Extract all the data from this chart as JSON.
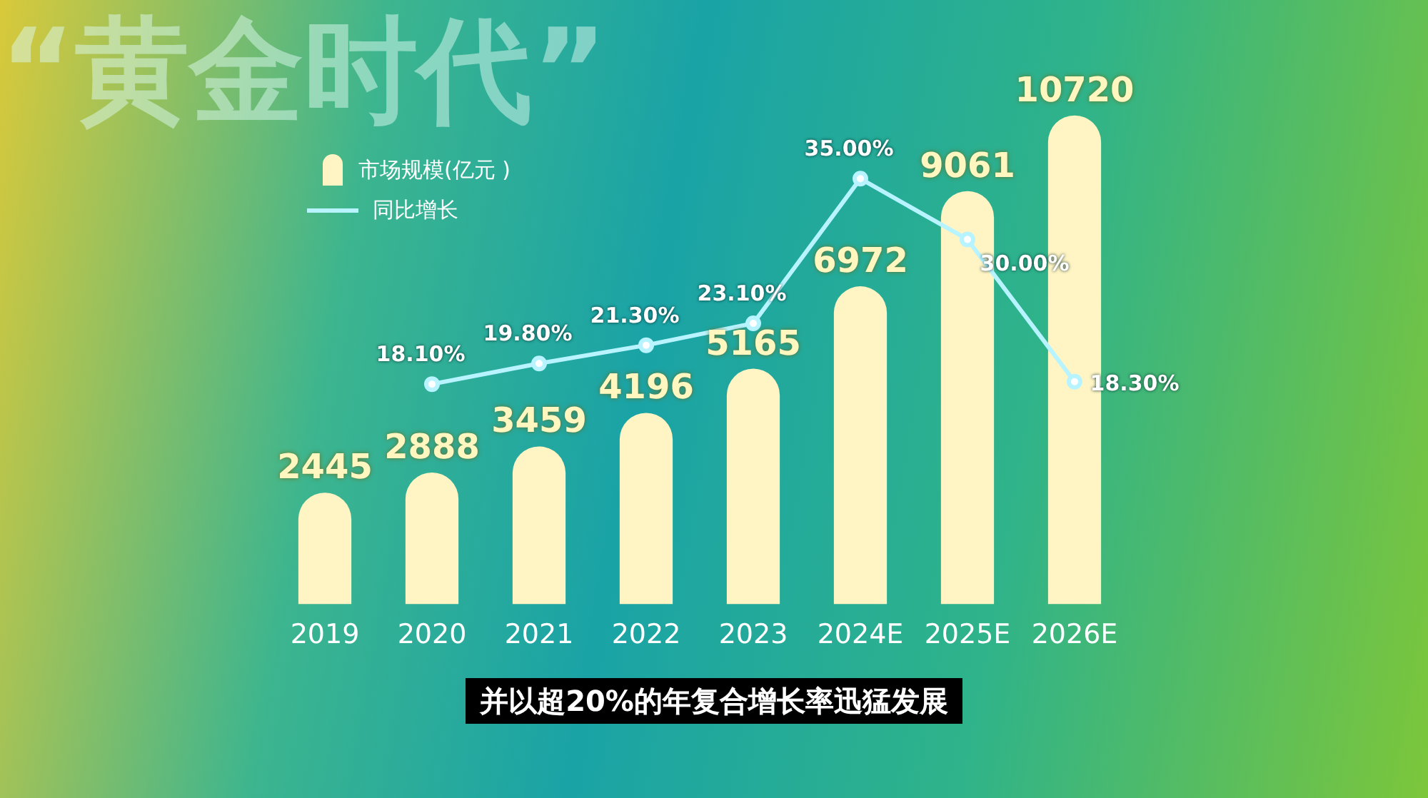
{
  "chart_data": {
    "type": "bar",
    "title": "“黄金时代”",
    "categories": [
      "2019",
      "2020",
      "2021",
      "2022",
      "2023",
      "2024E",
      "2025E",
      "2026E"
    ],
    "series": [
      {
        "name": "市场规模(亿元 )",
        "color": "#fff4c4",
        "values": [
          2445,
          2888,
          3459,
          4196,
          5165,
          6972,
          9061,
          10720
        ]
      },
      {
        "name": "同比增长",
        "type": "line",
        "axis": "y2",
        "color": "#b8f4ff",
        "marker": "circle",
        "values": [
          null,
          18.1,
          19.8,
          21.3,
          23.1,
          35.0,
          30.0,
          18.3
        ],
        "value_labels": [
          null,
          "18.10%",
          "19.80%",
          "21.30%",
          "23.10%",
          "35.00%",
          "30.00%",
          "18.30%"
        ]
      }
    ],
    "data_labels": true,
    "legend": "top left",
    "grid": false,
    "annotations": [
      "并以超20%的年复合增长率迅猛发展"
    ]
  }
}
